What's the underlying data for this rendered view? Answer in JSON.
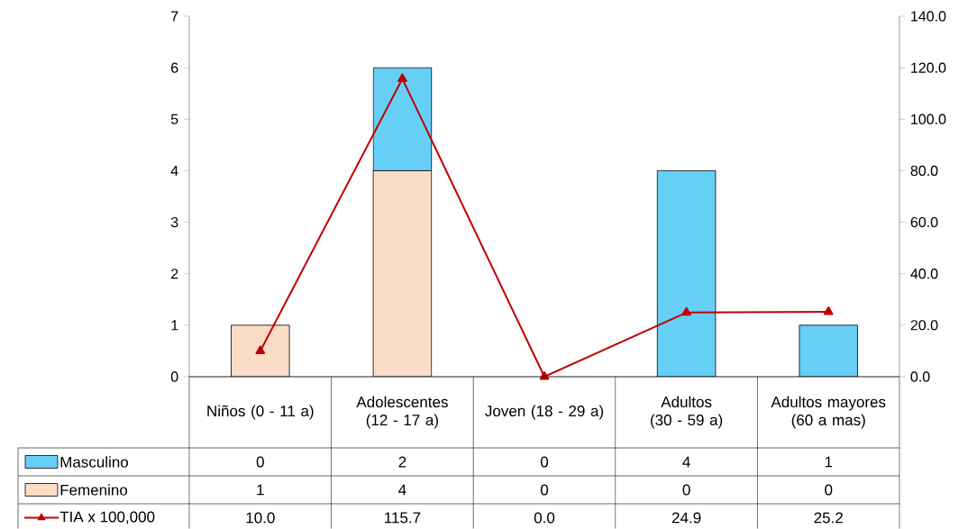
{
  "chart_data": {
    "type": "bar",
    "stacked": true,
    "categories": [
      "Niños (0 - 11 a)",
      "Adolescentes (12 - 17 a)",
      "Joven (18 - 29 a)",
      "Adultos (30 - 59 a)",
      "Adultos mayores (60 a mas)"
    ],
    "series": [
      {
        "name": "Femenino",
        "color": "#fbdcc7",
        "values": [
          1,
          4,
          0,
          0,
          0
        ],
        "value_labels": [
          "1",
          "4",
          "0",
          "0",
          "0"
        ]
      },
      {
        "name": "Masculino",
        "color": "#66cff5",
        "values": [
          0,
          2,
          0,
          4,
          1
        ],
        "value_labels": [
          "0",
          "2",
          "0",
          "4",
          "1"
        ]
      },
      {
        "name": "TIA x 100,000",
        "type": "line",
        "axis": "y2",
        "color": "#c00000",
        "values": [
          10.0,
          115.7,
          0.0,
          24.9,
          25.2
        ],
        "value_labels": [
          "10.0",
          "115.7",
          "0.0",
          "24.9",
          "25.2"
        ]
      }
    ],
    "ylim": [
      0,
      7
    ],
    "yticks": [
      0,
      1,
      2,
      3,
      4,
      5,
      6,
      7
    ],
    "y2lim": [
      0,
      140
    ],
    "y2ticks": [
      {
        "value": 0,
        "label": "0.0"
      },
      {
        "value": 20,
        "label": "20.0"
      },
      {
        "value": 40,
        "label": "40.0"
      },
      {
        "value": 60,
        "label": "60.0"
      },
      {
        "value": 80,
        "label": "80.0"
      },
      {
        "value": 100,
        "label": "100.0"
      },
      {
        "value": 120,
        "label": "120.0"
      },
      {
        "value": 140,
        "label": "140.0"
      }
    ],
    "marker": "triangle",
    "line_style": "solid",
    "legend": "bottom",
    "grid": false
  }
}
